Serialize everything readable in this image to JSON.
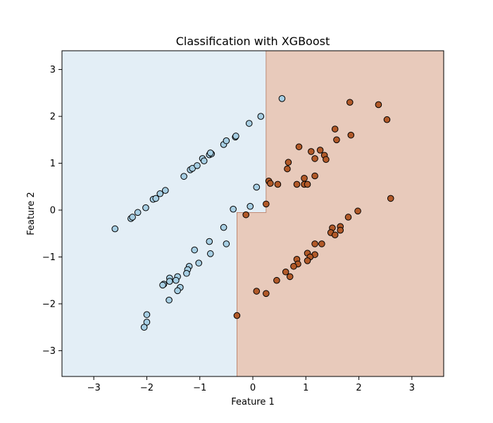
{
  "chart_data": {
    "type": "scatter",
    "title": "Classification with XGBoost",
    "xlabel": "Feature 1",
    "ylabel": "Feature 2",
    "xlim": [
      -3.6,
      3.6
    ],
    "ylim": [
      -3.55,
      3.4
    ],
    "xticks": [
      -3,
      -2,
      -1,
      0,
      1,
      2,
      3
    ],
    "yticks": [
      -3,
      -2,
      -1,
      0,
      1,
      2,
      3
    ],
    "grid": false,
    "legend": "none",
    "decision_regions": {
      "class_0_color": "#e3eef6",
      "class_1_color": "#e8cabb",
      "boundary_color": "#b4785f",
      "class_0_polygon": [
        [
          -3.6,
          -3.55
        ],
        [
          -0.3,
          -3.55
        ],
        [
          -0.3,
          -0.05
        ],
        [
          0.25,
          -0.05
        ],
        [
          0.25,
          3.4
        ],
        [
          -3.6,
          3.4
        ]
      ]
    },
    "series": [
      {
        "color": "#a6cee3",
        "points": [
          [
            -2.6,
            -0.4
          ],
          [
            -2.3,
            -0.18
          ],
          [
            -2.27,
            -0.15
          ],
          [
            -2.17,
            -0.05
          ],
          [
            -2.02,
            0.05
          ],
          [
            -1.88,
            0.23
          ],
          [
            -1.83,
            0.25
          ],
          [
            -1.75,
            0.35
          ],
          [
            -1.65,
            0.42
          ],
          [
            -1.3,
            0.72
          ],
          [
            -1.18,
            0.86
          ],
          [
            -1.14,
            0.89
          ],
          [
            -1.05,
            0.95
          ],
          [
            -0.95,
            1.1
          ],
          [
            -0.92,
            1.05
          ],
          [
            -0.82,
            1.18
          ],
          [
            -0.78,
            1.2
          ],
          [
            -0.8,
            1.22
          ],
          [
            -0.55,
            1.4
          ],
          [
            -0.5,
            1.48
          ],
          [
            -0.33,
            1.56
          ],
          [
            -0.32,
            1.58
          ],
          [
            -0.07,
            1.85
          ],
          [
            0.15,
            2.0
          ],
          [
            0.55,
            2.38
          ],
          [
            0.07,
            0.49
          ],
          [
            -0.37,
            0.02
          ],
          [
            -0.05,
            0.08
          ],
          [
            -0.55,
            -0.37
          ],
          [
            -0.5,
            -0.72
          ],
          [
            -0.82,
            -0.67
          ],
          [
            -0.8,
            -0.93
          ],
          [
            -1.1,
            -0.85
          ],
          [
            -1.02,
            -1.13
          ],
          [
            -1.2,
            -1.2
          ],
          [
            -1.23,
            -1.27
          ],
          [
            -1.25,
            -1.35
          ],
          [
            -1.42,
            -1.42
          ],
          [
            -1.57,
            -1.45
          ],
          [
            -1.45,
            -1.5
          ],
          [
            -1.57,
            -1.52
          ],
          [
            -1.68,
            -1.58
          ],
          [
            -1.7,
            -1.6
          ],
          [
            -1.37,
            -1.65
          ],
          [
            -1.42,
            -1.72
          ],
          [
            -1.58,
            -1.92
          ],
          [
            -2.0,
            -2.23
          ],
          [
            -2.0,
            -2.39
          ],
          [
            -2.05,
            -2.5
          ]
        ]
      },
      {
        "color": "#b15928",
        "points": [
          [
            1.83,
            2.3
          ],
          [
            2.37,
            2.25
          ],
          [
            2.53,
            1.93
          ],
          [
            1.55,
            1.73
          ],
          [
            1.85,
            1.6
          ],
          [
            1.58,
            1.5
          ],
          [
            0.87,
            1.35
          ],
          [
            1.27,
            1.28
          ],
          [
            1.1,
            1.25
          ],
          [
            1.35,
            1.17
          ],
          [
            1.38,
            1.08
          ],
          [
            1.17,
            1.1
          ],
          [
            0.67,
            1.02
          ],
          [
            0.65,
            0.88
          ],
          [
            1.17,
            0.73
          ],
          [
            0.97,
            0.68
          ],
          [
            0.3,
            0.62
          ],
          [
            0.33,
            0.57
          ],
          [
            0.47,
            0.55
          ],
          [
            0.83,
            0.55
          ],
          [
            0.97,
            0.55
          ],
          [
            1.03,
            0.55
          ],
          [
            2.6,
            0.25
          ],
          [
            0.25,
            0.13
          ],
          [
            -0.13,
            -0.1
          ],
          [
            1.98,
            -0.02
          ],
          [
            1.8,
            -0.15
          ],
          [
            1.65,
            -0.35
          ],
          [
            1.5,
            -0.38
          ],
          [
            1.65,
            -0.43
          ],
          [
            1.47,
            -0.48
          ],
          [
            1.55,
            -0.53
          ],
          [
            1.17,
            -0.72
          ],
          [
            1.3,
            -0.72
          ],
          [
            1.03,
            -0.92
          ],
          [
            1.17,
            -0.95
          ],
          [
            1.08,
            -1.0
          ],
          [
            0.83,
            -1.05
          ],
          [
            1.03,
            -1.08
          ],
          [
            0.85,
            -1.15
          ],
          [
            0.77,
            -1.2
          ],
          [
            0.62,
            -1.32
          ],
          [
            0.7,
            -1.42
          ],
          [
            0.45,
            -1.5
          ],
          [
            0.07,
            -1.73
          ],
          [
            0.25,
            -1.78
          ],
          [
            -0.3,
            -2.25
          ]
        ]
      }
    ]
  }
}
